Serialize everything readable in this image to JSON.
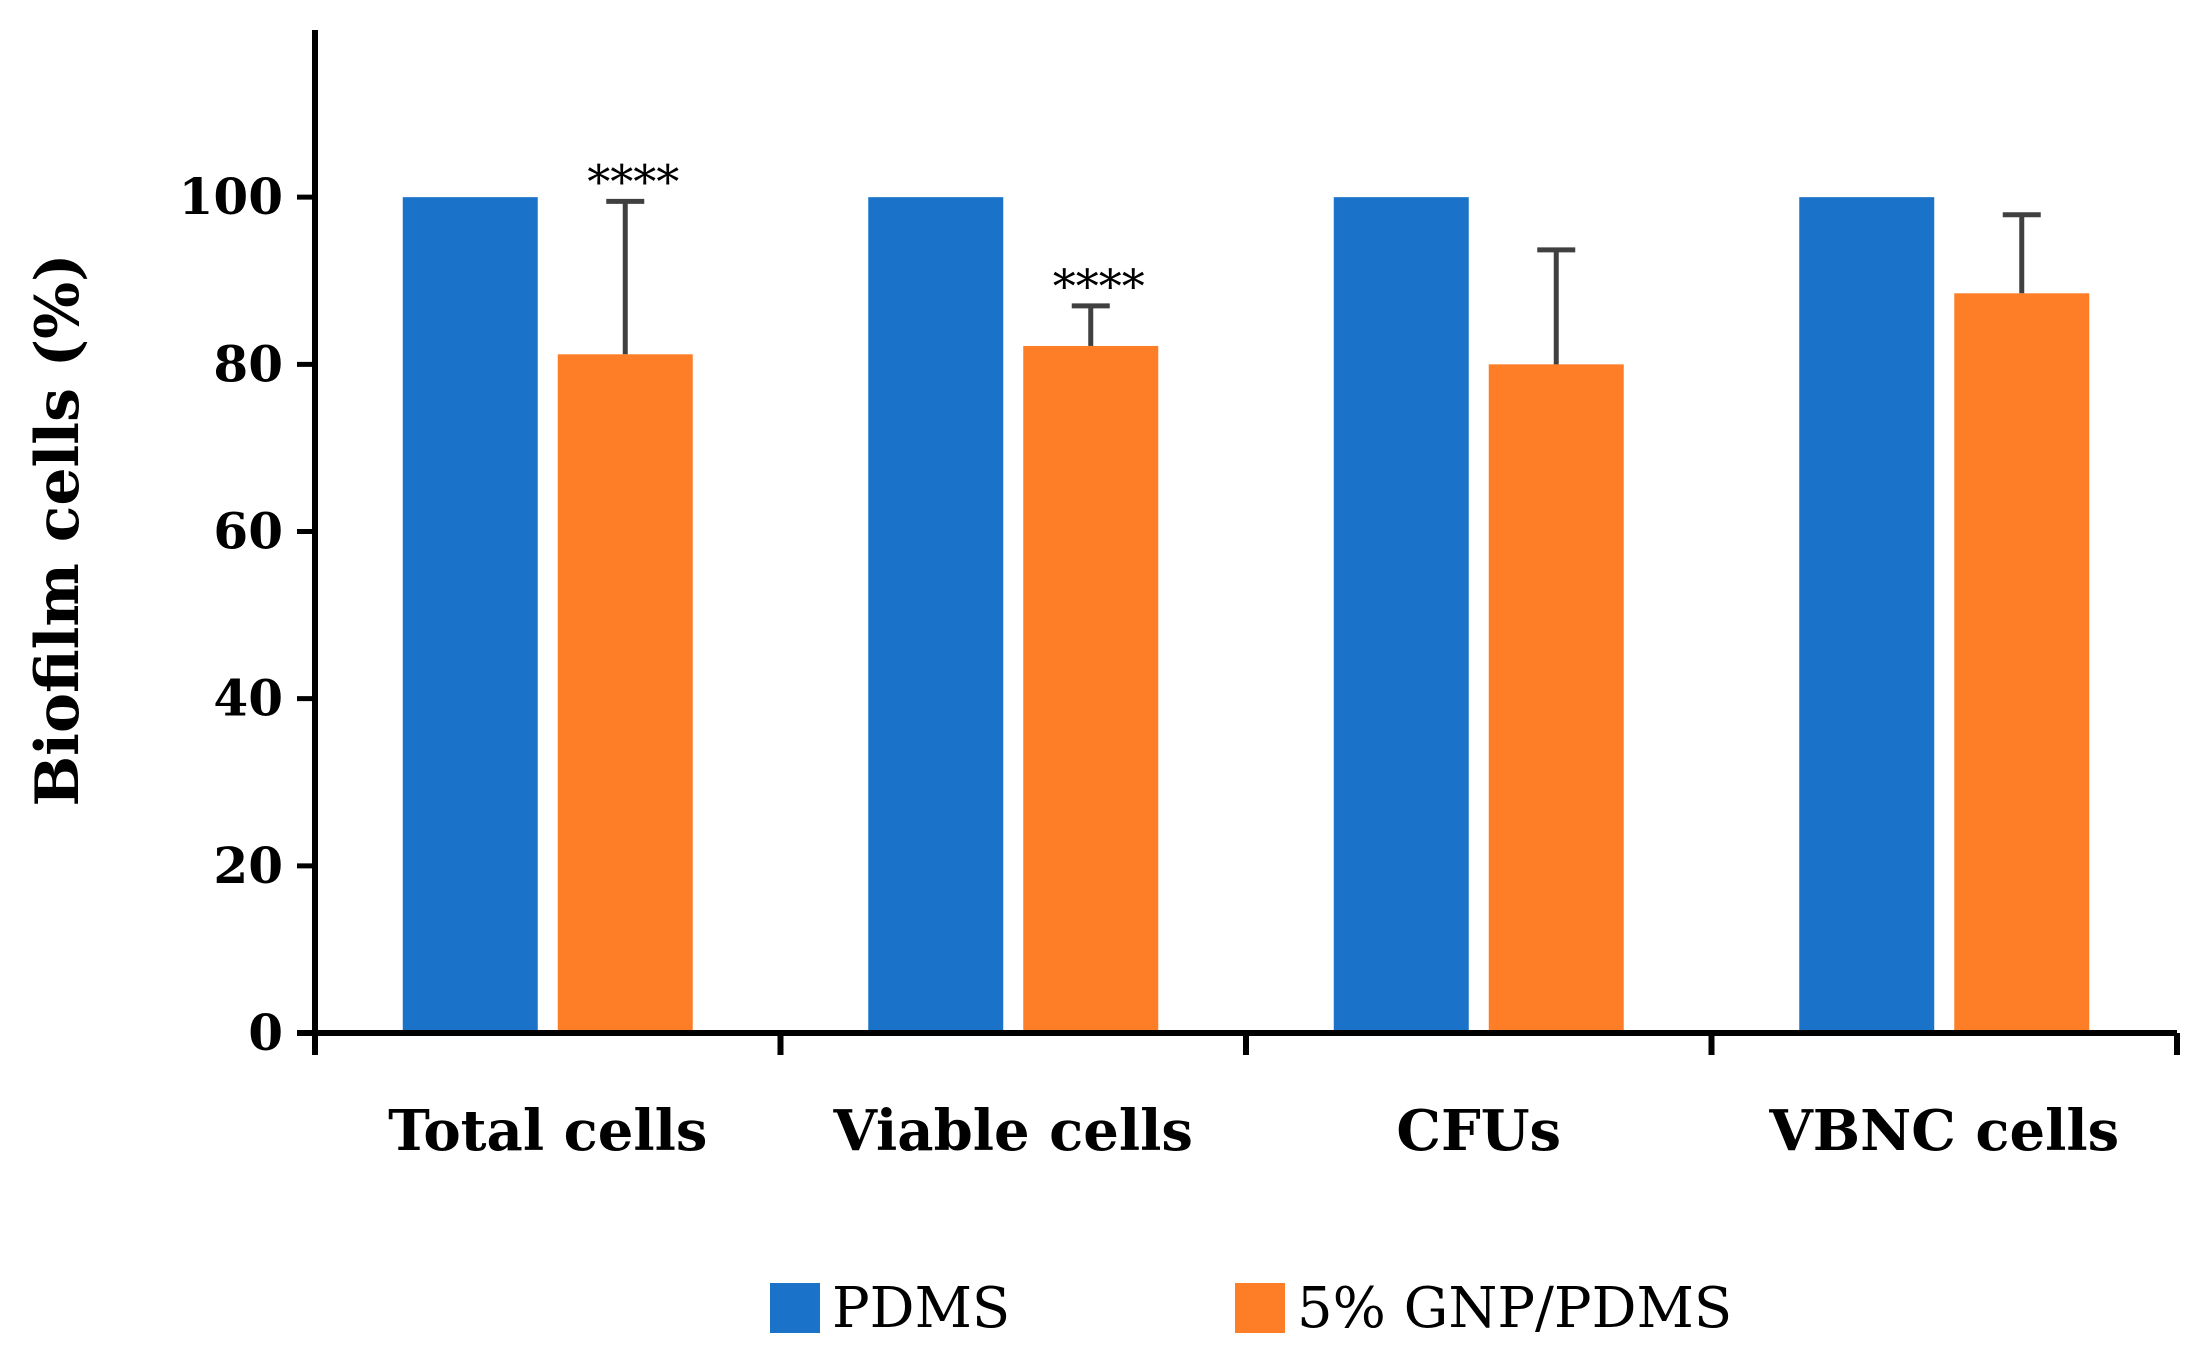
{
  "chart_data": {
    "type": "bar",
    "title": "",
    "xlabel": "",
    "ylabel": "Biofilm cells (%)",
    "ylim": [
      0,
      120
    ],
    "yticks": [
      "0",
      "20",
      "40",
      "60",
      "80",
      "100"
    ],
    "categories": [
      "Total cells",
      "Viable cells",
      "CFUs",
      "VBNC cells"
    ],
    "series": [
      {
        "name": "PDMS",
        "color": "#1a73c8",
        "values": [
          100,
          100,
          100,
          100
        ],
        "errors": [
          null,
          null,
          null,
          null
        ]
      },
      {
        "name": "5% GNP/PDMS",
        "color": "#fd7e27",
        "values": [
          81.2,
          82.2,
          80.0,
          88.5
        ],
        "errors": [
          18.3,
          4.8,
          13.7,
          9.4
        ]
      }
    ],
    "annotations": [
      {
        "category": 0,
        "series": 1,
        "text": "****"
      },
      {
        "category": 1,
        "series": 1,
        "text": "****"
      }
    ],
    "grid": false,
    "legend_position": "bottom"
  }
}
